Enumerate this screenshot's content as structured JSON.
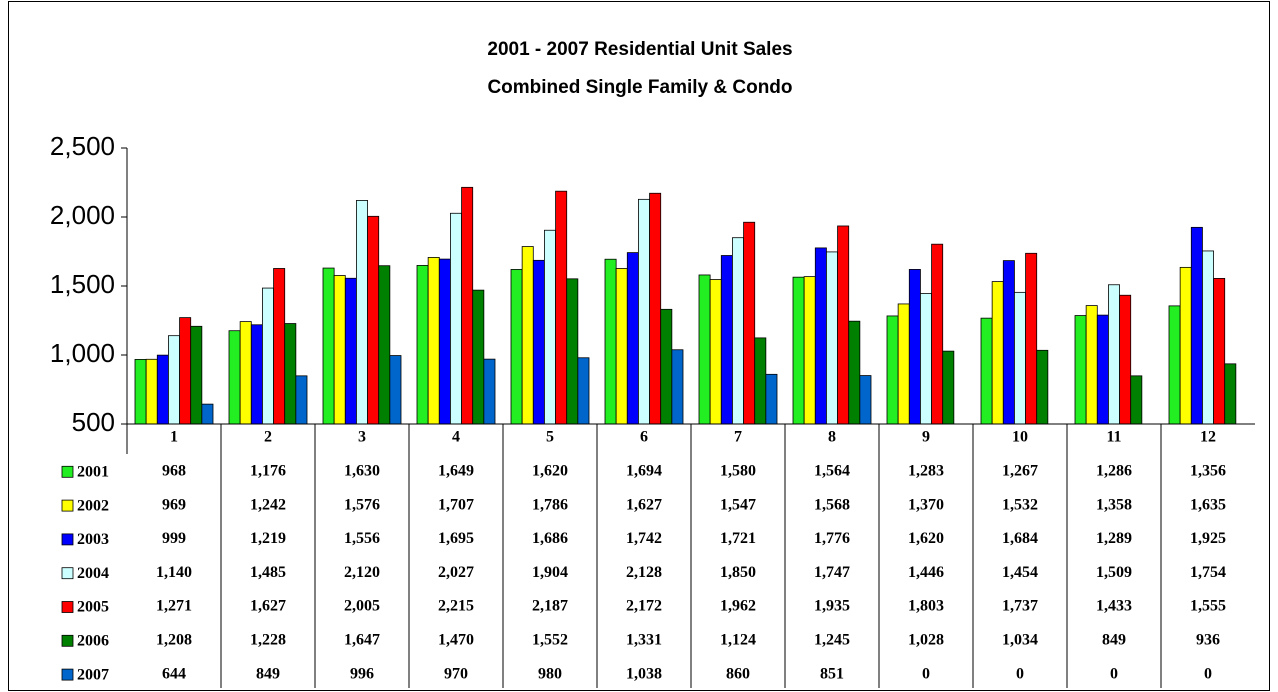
{
  "chart_data": {
    "type": "bar",
    "title": "2001 - 2007 Residential Unit Sales",
    "subtitle": "Combined Single Family & Condo",
    "categories": [
      "1",
      "2",
      "3",
      "4",
      "5",
      "6",
      "7",
      "8",
      "9",
      "10",
      "11",
      "12"
    ],
    "series": [
      {
        "name": "2001",
        "color": "#22ee22",
        "values": [
          968,
          1176,
          1630,
          1649,
          1620,
          1694,
          1580,
          1564,
          1283,
          1267,
          1286,
          1356
        ],
        "value_labels": [
          "968",
          "1,176",
          "1,630",
          "1,649",
          "1,620",
          "1,694",
          "1,580",
          "1,564",
          "1,283",
          "1,267",
          "1,286",
          "1,356"
        ]
      },
      {
        "name": "2002",
        "color": "#ffff00",
        "values": [
          969,
          1242,
          1576,
          1707,
          1786,
          1627,
          1547,
          1568,
          1370,
          1532,
          1358,
          1635
        ],
        "value_labels": [
          "969",
          "1,242",
          "1,576",
          "1,707",
          "1,786",
          "1,627",
          "1,547",
          "1,568",
          "1,370",
          "1,532",
          "1,358",
          "1,635"
        ]
      },
      {
        "name": "2003",
        "color": "#0000ff",
        "values": [
          999,
          1219,
          1556,
          1695,
          1686,
          1742,
          1721,
          1776,
          1620,
          1684,
          1289,
          1925
        ],
        "value_labels": [
          "999",
          "1,219",
          "1,556",
          "1,695",
          "1,686",
          "1,742",
          "1,721",
          "1,776",
          "1,620",
          "1,684",
          "1,289",
          "1,925"
        ]
      },
      {
        "name": "2004",
        "color": "#ccffff",
        "values": [
          1140,
          1485,
          2120,
          2027,
          1904,
          2128,
          1850,
          1747,
          1446,
          1454,
          1509,
          1754
        ],
        "value_labels": [
          "1,140",
          "1,485",
          "2,120",
          "2,027",
          "1,904",
          "2,128",
          "1,850",
          "1,747",
          "1,446",
          "1,454",
          "1,509",
          "1,754"
        ]
      },
      {
        "name": "2005",
        "color": "#ff0000",
        "values": [
          1271,
          1627,
          2005,
          2215,
          2187,
          2172,
          1962,
          1935,
          1803,
          1737,
          1433,
          1555
        ],
        "value_labels": [
          "1,271",
          "1,627",
          "2,005",
          "2,215",
          "2,187",
          "2,172",
          "1,962",
          "1,935",
          "1,803",
          "1,737",
          "1,433",
          "1,555"
        ]
      },
      {
        "name": "2006",
        "color": "#008000",
        "values": [
          1208,
          1228,
          1647,
          1470,
          1552,
          1331,
          1124,
          1245,
          1028,
          1034,
          849,
          936
        ],
        "value_labels": [
          "1,208",
          "1,228",
          "1,647",
          "1,470",
          "1,552",
          "1,331",
          "1,124",
          "1,245",
          "1,028",
          "1,034",
          "849",
          "936"
        ]
      },
      {
        "name": "2007",
        "color": "#0066cc",
        "values": [
          644,
          849,
          996,
          970,
          980,
          1038,
          860,
          851,
          0,
          0,
          0,
          0
        ],
        "value_labels": [
          "644",
          "849",
          "996",
          "970",
          "980",
          "1,038",
          "860",
          "851",
          "0",
          "0",
          "0",
          "0"
        ]
      }
    ],
    "ylim": [
      500,
      2500
    ],
    "yticks": [
      500,
      {
        "value": 1000,
        "label": "1,000"
      },
      {
        "value": 1500,
        "label": "1,500"
      },
      {
        "value": 2000,
        "label": "2,000"
      },
      {
        "value": 2500,
        "label": "2,500"
      }
    ],
    "grid": false
  }
}
